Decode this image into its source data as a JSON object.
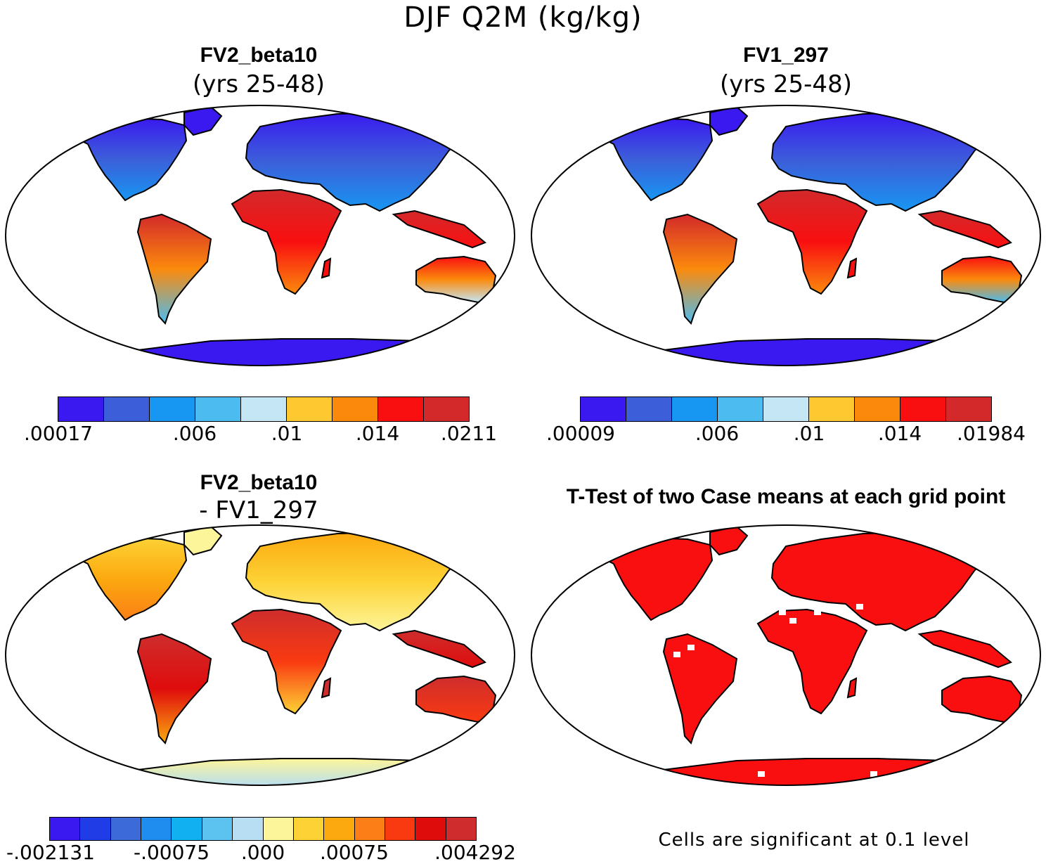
{
  "title": "DJF Q2M (kg/kg)",
  "panels": [
    {
      "title": "FV2_beta10",
      "subtitle": "(yrs 25-48)",
      "colorbar": {
        "colors": [
          "#3a19f0",
          "#3c5fd9",
          "#1796f2",
          "#4cbcf0",
          "#c5e6f5",
          "#fdc830",
          "#fb8a0c",
          "#f90f10",
          "#d3292b"
        ],
        "labels": [
          ".00017",
          ".006",
          ".01",
          ".014",
          ".0211"
        ]
      }
    },
    {
      "title": "FV1_297",
      "subtitle": "(yrs 25-48)",
      "colorbar": {
        "colors": [
          "#3a19f0",
          "#3c5fd9",
          "#1796f2",
          "#4cbcf0",
          "#c5e6f5",
          "#fdc830",
          "#fb8a0c",
          "#f90f10",
          "#d3292b"
        ],
        "labels": [
          ".00009",
          ".006",
          ".01",
          ".014",
          ".01984"
        ]
      }
    },
    {
      "title": "FV2_beta10",
      "subtitle": "- FV1_297",
      "colorbar": {
        "colors": [
          "#3a19f0",
          "#1f3ce6",
          "#3c6ad9",
          "#1f8cf0",
          "#11b0f0",
          "#5cc2ef",
          "#b7def2",
          "#fdf59a",
          "#fdd235",
          "#fba90f",
          "#fb7f16",
          "#f93a11",
          "#df0c0c",
          "#cf2d2d"
        ],
        "labels": [
          "-.002131",
          "-.00075",
          ".000",
          ".00075",
          ".004292"
        ]
      }
    },
    {
      "title": "T-Test of two Case means at each grid point",
      "note": "Cells are significant at 0.1 level",
      "color": "#f90f10"
    }
  ]
}
